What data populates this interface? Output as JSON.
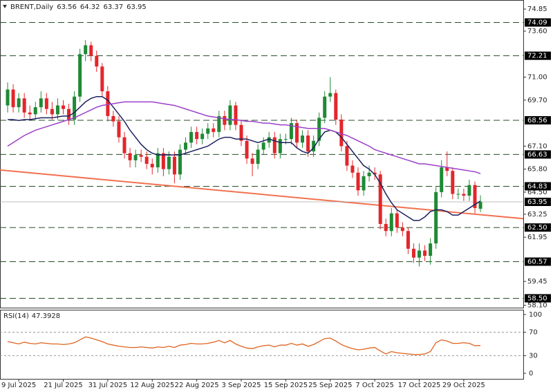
{
  "chart_data": {
    "type": "candlestick",
    "title": "BRENT,Daily",
    "up_color": "#1f8a35",
    "down_color": "#e3262b",
    "xlim": [
      -1.37,
      92.7
    ],
    "ylim": [
      57.97,
      75.36
    ],
    "xticks": [
      {
        "value": 2,
        "label": "9 Jul 2025"
      },
      {
        "value": 10,
        "label": "21 Jul 2025"
      },
      {
        "value": 18,
        "label": "31 Jul 2025"
      },
      {
        "value": 26,
        "label": "12 Aug 2025"
      },
      {
        "value": 34,
        "label": "22 Aug 2025"
      },
      {
        "value": 42,
        "label": "3 Sep 2025"
      },
      {
        "value": 50,
        "label": "15 Sep 2025"
      },
      {
        "value": 58,
        "label": "25 Sep 2025"
      },
      {
        "value": 66,
        "label": "7 Oct 2025"
      },
      {
        "value": 74,
        "label": "17 Oct 2025"
      },
      {
        "value": 82,
        "label": "29 Oct 2025"
      }
    ],
    "yticks": [
      74.85,
      {
        "value": 73.6,
        "label": "73.60"
      },
      {
        "value": 71,
        "label": "71.00"
      },
      {
        "value": 69.7,
        "label": "69.70"
      },
      {
        "value": 67.1,
        "label": "67.10"
      },
      {
        "value": 65.8,
        "label": "65.80"
      },
      {
        "value": 64.5,
        "label": "64.50"
      },
      63.25,
      61.95,
      59.45,
      {
        "value": 58.1,
        "label": "58.10"
      }
    ],
    "levels": [
      74.09,
      72.21,
      68.56,
      66.63,
      64.83,
      {
        "value": 62.5,
        "label": "62.50"
      },
      60.57,
      {
        "value": 58.5,
        "label": "58.50"
      }
    ],
    "level_color": "#234d23",
    "candles": {
      "open": [
        69.4,
        70.3,
        69.3,
        69.8,
        69.0,
        68.9,
        69.3,
        69.8,
        69.2,
        68.9,
        69.4,
        69.2,
        68.6,
        69.9,
        72.3,
        72.8,
        72.2,
        71.6,
        70.2,
        68.8,
        68.5,
        67.6,
        66.7,
        66.3,
        66.6,
        66.5,
        66.1,
        65.9,
        66.7,
        65.8,
        66.5,
        65.5,
        66.9,
        67.3,
        67.9,
        67.5,
        67.8,
        68.1,
        67.9,
        68.8,
        68.3,
        69.4,
        68.3,
        67.4,
        66.4,
        66.1,
        66.9,
        67.3,
        67.6,
        66.7,
        67.5,
        67.5,
        68.4,
        67.3,
        67.7,
        66.8,
        67.4,
        68.7,
        69.9,
        70.1,
        68.6,
        67.1,
        66.0,
        65.6,
        64.6,
        65.4,
        65.6,
        65.5,
        62.7,
        62.3,
        63.3,
        62.5,
        62.3,
        61.3,
        60.8,
        61.2,
        60.9,
        61.6,
        64.5,
        65.9,
        65.7,
        64.4,
        64.4,
        64.3,
        64.9,
        63.56
      ],
      "high": [
        70.7,
        70.6,
        70.1,
        70.1,
        69.4,
        69.6,
        70.2,
        70.1,
        69.6,
        69.8,
        69.7,
        69.5,
        70.2,
        72.6,
        73.1,
        73.0,
        72.5,
        71.8,
        70.5,
        69.1,
        68.8,
        67.9,
        67.0,
        66.9,
        66.9,
        66.8,
        66.4,
        67.0,
        67.0,
        66.8,
        66.8,
        67.2,
        67.6,
        68.2,
        68.2,
        68.1,
        68.4,
        68.4,
        69.1,
        69.1,
        69.7,
        69.6,
        68.6,
        67.7,
        66.7,
        67.2,
        67.6,
        67.9,
        67.9,
        67.8,
        67.8,
        68.7,
        68.6,
        68.0,
        68.0,
        67.7,
        69.0,
        70.2,
        71.0,
        70.3,
        68.9,
        67.4,
        66.3,
        65.9,
        65.7,
        66.0,
        65.9,
        65.7,
        63.0,
        63.6,
        63.5,
        62.8,
        62.5,
        61.6,
        61.6,
        61.5,
        61.9,
        64.8,
        66.3,
        66.8,
        65.9,
        64.7,
        64.7,
        65.2,
        65.1,
        64.32
      ],
      "low": [
        69.0,
        69.0,
        69.0,
        68.7,
        68.6,
        68.6,
        69.0,
        68.9,
        68.6,
        68.6,
        68.9,
        68.3,
        68.3,
        69.6,
        71.9,
        71.9,
        71.3,
        69.9,
        68.5,
        68.2,
        67.3,
        66.4,
        65.9,
        65.9,
        66.2,
        65.8,
        65.5,
        65.6,
        65.4,
        65.5,
        65.0,
        65.2,
        66.6,
        67.0,
        67.2,
        67.2,
        67.5,
        67.6,
        67.6,
        68.0,
        68.0,
        68.0,
        67.1,
        66.1,
        65.4,
        65.8,
        66.6,
        67.0,
        66.4,
        66.4,
        67.2,
        67.2,
        67.0,
        67.0,
        66.5,
        66.5,
        67.1,
        68.4,
        69.6,
        68.3,
        66.8,
        65.7,
        65.3,
        64.3,
        64.3,
        65.1,
        65.2,
        62.4,
        62.0,
        62.0,
        62.2,
        62.0,
        61.0,
        60.5,
        60.3,
        60.6,
        60.4,
        61.3,
        64.2,
        65.4,
        64.1,
        64.1,
        64.0,
        64.0,
        63.3,
        63.37
      ],
      "close": [
        70.3,
        69.3,
        69.8,
        69.0,
        68.9,
        69.3,
        69.8,
        69.2,
        68.9,
        69.4,
        69.2,
        68.6,
        69.9,
        72.3,
        72.8,
        72.2,
        71.6,
        70.2,
        68.8,
        68.5,
        67.6,
        66.7,
        66.3,
        66.6,
        66.5,
        66.1,
        65.9,
        66.7,
        65.8,
        66.5,
        65.5,
        66.9,
        67.3,
        67.9,
        67.5,
        67.8,
        68.1,
        67.9,
        68.8,
        68.3,
        69.4,
        68.3,
        67.4,
        66.4,
        66.1,
        66.9,
        67.3,
        67.6,
        66.7,
        67.5,
        67.5,
        68.4,
        67.3,
        67.7,
        66.8,
        67.4,
        68.7,
        69.9,
        70.1,
        68.6,
        67.1,
        66.0,
        65.6,
        64.6,
        65.4,
        65.6,
        65.5,
        62.7,
        62.3,
        63.3,
        62.5,
        62.3,
        61.3,
        60.8,
        61.2,
        60.9,
        61.6,
        64.5,
        65.9,
        65.7,
        64.4,
        64.4,
        64.3,
        64.9,
        63.6,
        63.95
      ]
    },
    "series": [
      {
        "color": "#1b1f5e",
        "values": [
          68.6,
          68.6,
          68.55,
          68.6,
          68.6,
          68.65,
          68.7,
          68.7,
          68.7,
          68.75,
          68.8,
          68.8,
          69.0,
          69.3,
          69.6,
          69.8,
          69.9,
          69.9,
          69.7,
          69.3,
          68.9,
          68.5,
          68.0,
          67.6,
          67.2,
          66.9,
          66.7,
          66.6,
          66.6,
          66.6,
          66.6,
          66.6,
          66.7,
          66.8,
          66.9,
          67.0,
          67.1,
          67.3,
          67.5,
          67.6,
          67.6,
          67.5,
          67.5,
          67.5,
          67.4,
          67.3,
          67.4,
          67.5,
          67.4,
          67.3,
          67.3,
          67.3,
          67.0,
          66.8,
          66.7,
          67.0,
          67.5,
          67.9,
          68.0,
          67.9,
          67.6,
          67.2,
          66.8,
          66.4,
          66.0,
          65.8,
          65.5,
          65.0,
          64.4,
          63.9,
          63.5,
          63.3,
          63.1,
          62.9,
          62.9,
          63.1,
          63.4,
          63.5,
          63.5,
          63.4,
          63.2,
          63.2,
          63.4,
          63.6,
          63.8,
          64.0
        ]
      },
      {
        "color": "#9b3fc9",
        "values": [
          67.1,
          67.3,
          67.5,
          67.7,
          67.85,
          68.0,
          68.1,
          68.2,
          68.3,
          68.4,
          68.5,
          68.6,
          68.7,
          68.85,
          69.0,
          69.15,
          69.3,
          69.4,
          69.45,
          69.5,
          69.55,
          69.6,
          69.6,
          69.6,
          69.6,
          69.6,
          69.6,
          69.55,
          69.5,
          69.45,
          69.4,
          69.3,
          69.2,
          69.1,
          69.0,
          68.9,
          68.8,
          68.75,
          68.7,
          68.65,
          68.6,
          68.6,
          68.55,
          68.5,
          68.5,
          68.45,
          68.4,
          68.4,
          68.35,
          68.3,
          68.3,
          68.25,
          68.2,
          68.15,
          68.1,
          68.1,
          68.1,
          68.1,
          68.0,
          67.9,
          67.8,
          67.7,
          67.55,
          67.4,
          67.25,
          67.1,
          66.9,
          66.8,
          66.7,
          66.6,
          66.5,
          66.4,
          66.3,
          66.2,
          66.1,
          66.1,
          66.05,
          66.0,
          65.95,
          65.9,
          65.85,
          65.8,
          65.75,
          65.7,
          65.65,
          65.55
        ]
      }
    ],
    "trendline": {
      "color": "#f2704f",
      "x": [
        -1.37,
        92.7
      ],
      "values": [
        65.75,
        63.0
      ]
    },
    "rsi": {
      "name": "RSI(14)",
      "color": "#e0631e",
      "ylim": [
        -9.4,
        108.2
      ],
      "yticks": [
        100,
        70,
        30,
        0
      ],
      "levels": [
        70,
        30
      ],
      "values": [
        54,
        52,
        50,
        53,
        51,
        50,
        52,
        51,
        50,
        50,
        49,
        50,
        52,
        57,
        62,
        60,
        57,
        54,
        50,
        48,
        46,
        45,
        44,
        44,
        45,
        44,
        43,
        45,
        44,
        46,
        44,
        48,
        49,
        51,
        50,
        50,
        51,
        53,
        56,
        52,
        56,
        50,
        46,
        43,
        42,
        45,
        47,
        48,
        45,
        48,
        48,
        51,
        48,
        50,
        46,
        49,
        54,
        59,
        60,
        55,
        49,
        45,
        42,
        40,
        41,
        43,
        44,
        38,
        33,
        37,
        35,
        34,
        33,
        32,
        32,
        33,
        37,
        52,
        57,
        55,
        51,
        51,
        52,
        51,
        47,
        47.3928
      ]
    }
  }
}
